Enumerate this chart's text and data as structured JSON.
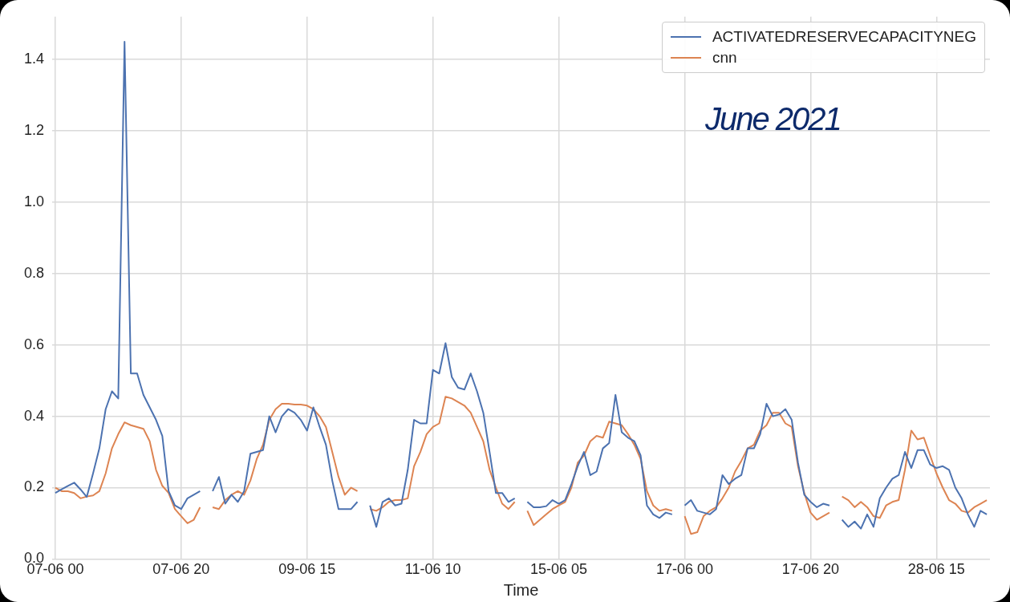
{
  "chart_data": {
    "type": "line",
    "xlabel": "Time",
    "annotations": [
      "June 2021"
    ],
    "legend": "top right",
    "grid": true,
    "categories": [
      "07-06 00",
      null,
      null,
      null,
      null,
      null,
      null,
      null,
      null,
      null,
      null,
      null,
      null,
      null,
      null,
      null,
      null,
      null,
      null,
      null,
      "07-06 20",
      null,
      null,
      null,
      null,
      null,
      null,
      null,
      null,
      null,
      null,
      null,
      null,
      null,
      null,
      null,
      null,
      null,
      null,
      null,
      "09-06 15",
      null,
      null,
      null,
      null,
      null,
      null,
      null,
      null,
      null,
      null,
      null,
      null,
      null,
      null,
      null,
      null,
      null,
      null,
      null,
      "11-06 10",
      null,
      null,
      null,
      null,
      null,
      null,
      null,
      null,
      null,
      null,
      null,
      null,
      null,
      null,
      null,
      null,
      null,
      null,
      null,
      "15-06 05",
      null,
      null,
      null,
      null,
      null,
      null,
      null,
      null,
      null,
      null,
      null,
      null,
      null,
      null,
      null,
      null,
      null,
      null,
      null,
      "17-06 00",
      null,
      null,
      null,
      null,
      null,
      null,
      null,
      null,
      null,
      null,
      null,
      null,
      null,
      null,
      null,
      null,
      null,
      null,
      null,
      "17-06 20",
      null,
      null,
      null,
      null,
      null,
      null,
      null,
      null,
      null,
      null,
      null,
      null,
      null,
      null,
      null,
      null,
      null,
      null,
      null,
      "28-06 15",
      null,
      null,
      null,
      null,
      null,
      null,
      null,
      null
    ],
    "ylim": [
      0,
      1.52
    ],
    "yticks": [
      {
        "value": 0,
        "label": "0.0"
      },
      0.2,
      0.4,
      0.6,
      0.8,
      {
        "value": 1,
        "label": "1.0"
      },
      1.2,
      1.4
    ],
    "series": [
      {
        "name": "ACTIVATEDRESERVECAPACITYNEG",
        "color": "#4c72b0",
        "values": [
          0.185,
          0.195,
          0.205,
          0.214,
          0.195,
          0.174,
          0.24,
          0.31,
          0.42,
          0.47,
          0.45,
          1.45,
          0.52,
          0.52,
          0.46,
          0.425,
          0.39,
          0.345,
          0.19,
          0.15,
          0.14,
          0.17,
          0.18,
          0.19,
          null,
          0.19,
          0.23,
          0.155,
          0.18,
          0.16,
          0.19,
          0.295,
          0.3,
          0.305,
          0.4,
          0.355,
          0.4,
          0.42,
          0.41,
          0.39,
          0.36,
          0.425,
          0.37,
          0.32,
          0.22,
          0.14,
          0.14,
          0.14,
          0.16,
          null,
          0.15,
          0.09,
          0.16,
          0.17,
          0.15,
          0.155,
          0.25,
          0.39,
          0.38,
          0.38,
          0.53,
          0.52,
          0.605,
          0.51,
          0.48,
          0.475,
          0.52,
          0.47,
          0.41,
          0.3,
          0.185,
          0.185,
          0.16,
          0.17,
          null,
          0.16,
          0.145,
          0.145,
          0.148,
          0.165,
          0.155,
          0.165,
          0.21,
          0.26,
          0.3,
          0.235,
          0.245,
          0.31,
          0.325,
          0.46,
          0.355,
          0.34,
          0.33,
          0.29,
          0.15,
          0.125,
          0.115,
          0.13,
          0.125,
          null,
          0.15,
          0.165,
          0.135,
          0.13,
          0.125,
          0.14,
          0.235,
          0.21,
          0.225,
          0.235,
          0.31,
          0.31,
          0.35,
          0.435,
          0.4,
          0.405,
          0.42,
          0.39,
          0.27,
          0.18,
          0.16,
          0.145,
          0.155,
          0.15,
          null,
          0.11,
          0.09,
          0.105,
          0.085,
          0.125,
          0.09,
          0.17,
          0.2,
          0.225,
          0.235,
          0.3,
          0.255,
          0.305,
          0.305,
          0.265,
          0.255,
          0.26,
          0.25,
          0.2,
          0.17,
          0.125,
          0.09,
          0.135,
          0.125
        ]
      },
      {
        "name": "cnn",
        "color": "#dd8452",
        "values": [
          0.2,
          0.19,
          0.19,
          0.185,
          0.17,
          0.175,
          0.178,
          0.19,
          0.24,
          0.31,
          0.35,
          0.383,
          0.375,
          0.37,
          0.365,
          0.33,
          0.25,
          0.205,
          0.185,
          0.14,
          0.12,
          0.1,
          0.11,
          0.145,
          null,
          0.145,
          0.14,
          0.165,
          0.18,
          0.19,
          0.18,
          0.22,
          0.28,
          0.32,
          0.39,
          0.42,
          0.435,
          0.435,
          0.433,
          0.433,
          0.43,
          0.42,
          0.4,
          0.37,
          0.3,
          0.23,
          0.18,
          0.2,
          0.19,
          null,
          0.14,
          0.135,
          0.145,
          0.16,
          0.165,
          0.165,
          0.17,
          0.26,
          0.3,
          0.35,
          0.37,
          0.38,
          0.455,
          0.45,
          0.44,
          0.43,
          0.41,
          0.37,
          0.33,
          0.25,
          0.2,
          0.155,
          0.14,
          0.16,
          null,
          0.135,
          0.095,
          0.11,
          0.125,
          0.14,
          0.15,
          0.16,
          0.2,
          0.27,
          0.29,
          0.33,
          0.345,
          0.34,
          0.385,
          0.38,
          0.375,
          0.35,
          0.32,
          0.28,
          0.19,
          0.15,
          0.135,
          0.14,
          0.135,
          null,
          0.12,
          0.07,
          0.075,
          0.12,
          0.135,
          0.145,
          0.17,
          0.2,
          0.245,
          0.275,
          0.31,
          0.32,
          0.36,
          0.375,
          0.41,
          0.41,
          0.38,
          0.37,
          0.26,
          0.185,
          0.13,
          0.11,
          0.12,
          0.13,
          null,
          0.175,
          0.165,
          0.145,
          0.16,
          0.145,
          0.12,
          0.115,
          0.15,
          0.16,
          0.165,
          0.25,
          0.36,
          0.335,
          0.34,
          0.29,
          0.24,
          0.2,
          0.165,
          0.155,
          0.135,
          0.13,
          0.145,
          0.155,
          0.165
        ]
      }
    ]
  }
}
